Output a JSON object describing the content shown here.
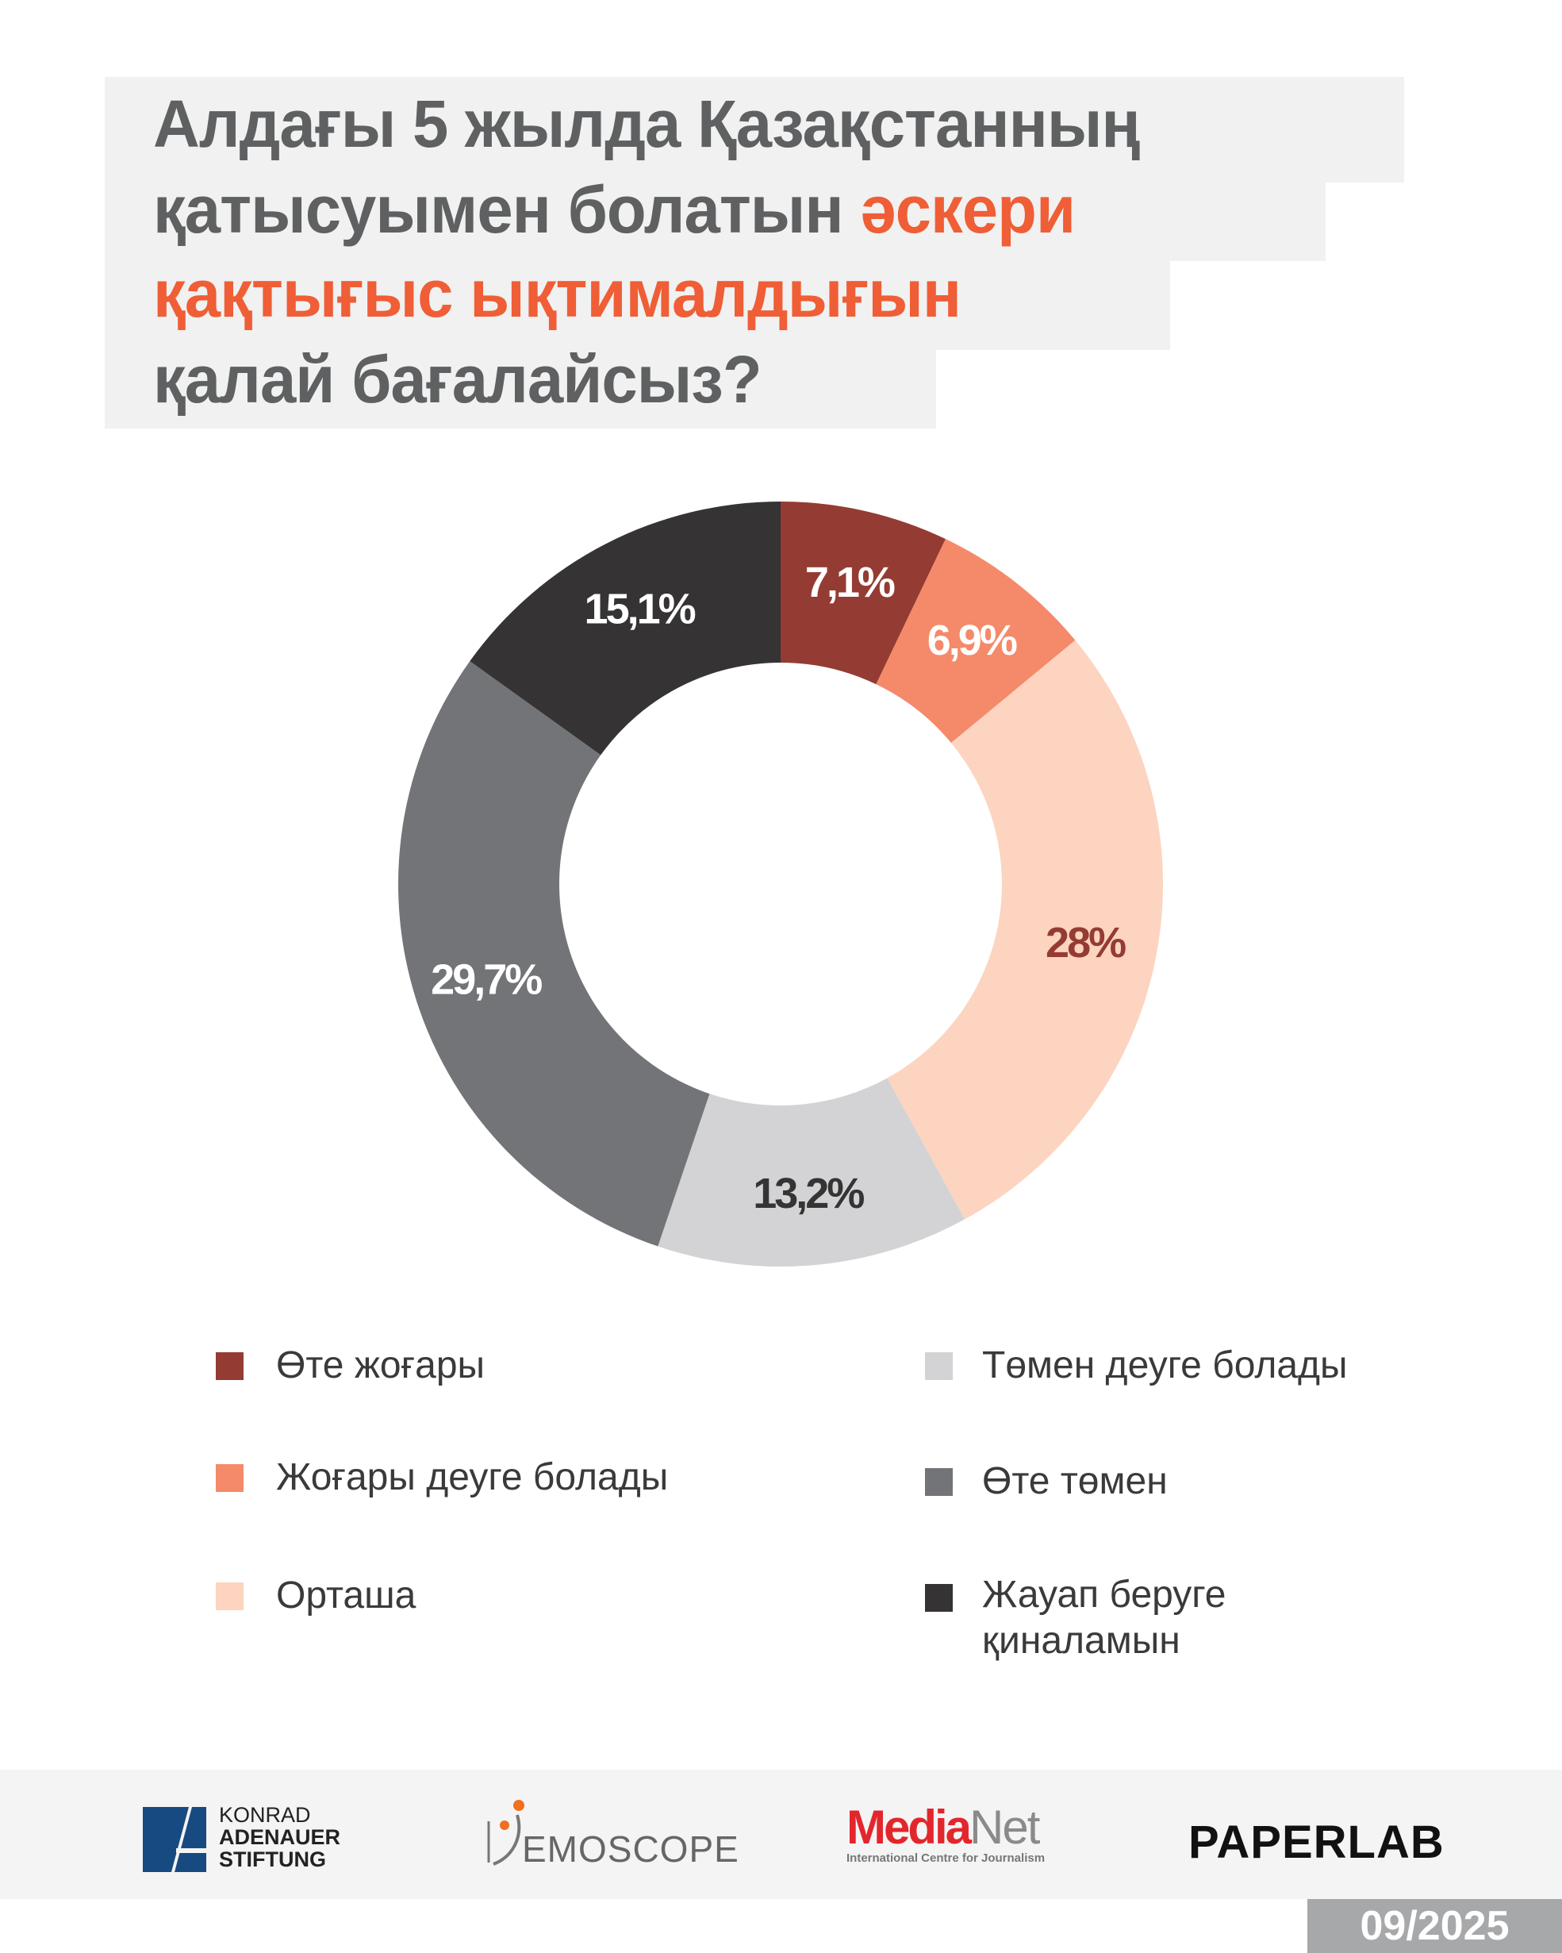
{
  "title": {
    "line1": "Алдағы 5 жылда Қазақстанның",
    "line2_prefix": "қатысуымен болатын ",
    "line2_accent": "әскери",
    "line3_accent": "қақтығыс ықтималдығын",
    "line4": "қалай бағалайсыз?"
  },
  "colors": {
    "accent": "#ef5e36",
    "title": "#5f6061"
  },
  "chart_data": {
    "type": "pie",
    "donut": true,
    "title": "Алдағы 5 жылда Қазақстанның қатысуымен болатын әскери қақтығыс ықтималдығын қалай бағалайсыз?",
    "categories": [
      "Өте жоғары",
      "Жоғары деуге болады",
      "Орташа",
      "Төмен деуге болады",
      "Өте төмен",
      "Жауап беруге қиналамын"
    ],
    "values": [
      7.1,
      6.9,
      28,
      13.2,
      29.7,
      15.1
    ],
    "labels": [
      "7,1%",
      "6,9%",
      "28%",
      "13,2%",
      "29,7%",
      "15,1%"
    ],
    "colors": [
      "#943c33",
      "#f48a6a",
      "#fcd4c0",
      "#d3d3d5",
      "#737477",
      "#353334"
    ],
    "label_colors": [
      "#ffffff",
      "#ffffff",
      "#943c33",
      "#353334",
      "#ffffff",
      "#ffffff"
    ],
    "legend_placement": "bottom"
  },
  "legend": [
    {
      "label": "Өте жоғары"
    },
    {
      "label": "Жоғары деуге болады"
    },
    {
      "label": "Орташа"
    },
    {
      "label": "Төмен деуге болады"
    },
    {
      "label": "Өте төмен"
    },
    {
      "label_line1": "Жауап беруге",
      "label_line2": "қиналамын"
    }
  ],
  "footer": {
    "logos": {
      "kas": [
        "KONRAD",
        "ADENAUER",
        "STIFTUNG"
      ],
      "demoscope": "EMOSCOPE",
      "medianet_red": "Media",
      "medianet_gray": "Net",
      "medianet_sub": "International Centre for Journalism",
      "paperlab": "PAPERLAB"
    },
    "date": "09/2025"
  }
}
